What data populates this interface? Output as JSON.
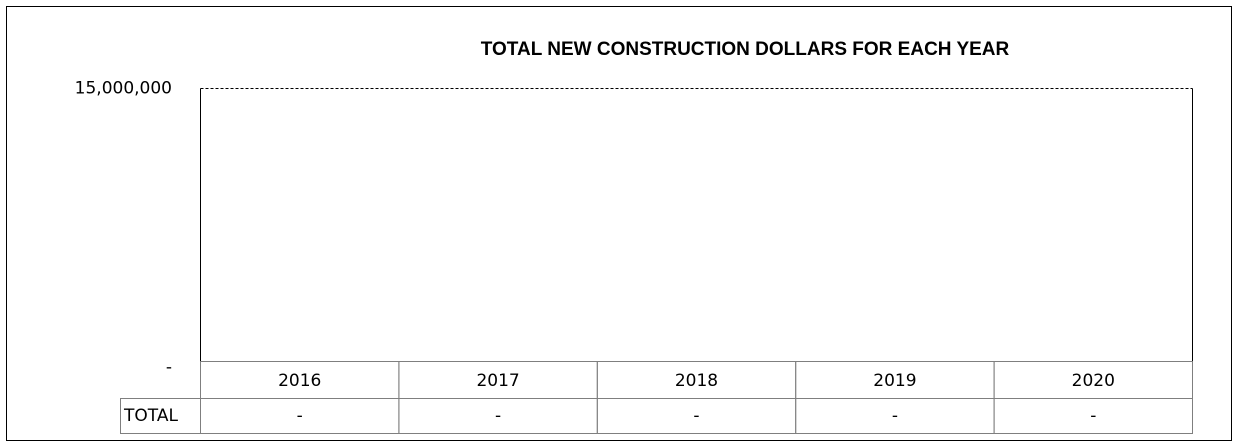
{
  "chart_data": {
    "type": "bar",
    "title": "TOTAL NEW CONSTRUCTION DOLLARS FOR EACH YEAR",
    "categories": [
      "2016",
      "2017",
      "2018",
      "2019",
      "2020"
    ],
    "series": [
      {
        "name": "TOTAL",
        "color": "#4472c4",
        "values": [
          0,
          0,
          0,
          0,
          0
        ],
        "value_labels": [
          "-",
          "-",
          "-",
          "-",
          "-"
        ]
      }
    ],
    "ylim": [
      0,
      15000000
    ],
    "yticks": [
      {
        "value": 0,
        "label": "-"
      },
      {
        "value": 15000000,
        "label": "15,000,000"
      }
    ],
    "grid": true,
    "data_table": true
  }
}
